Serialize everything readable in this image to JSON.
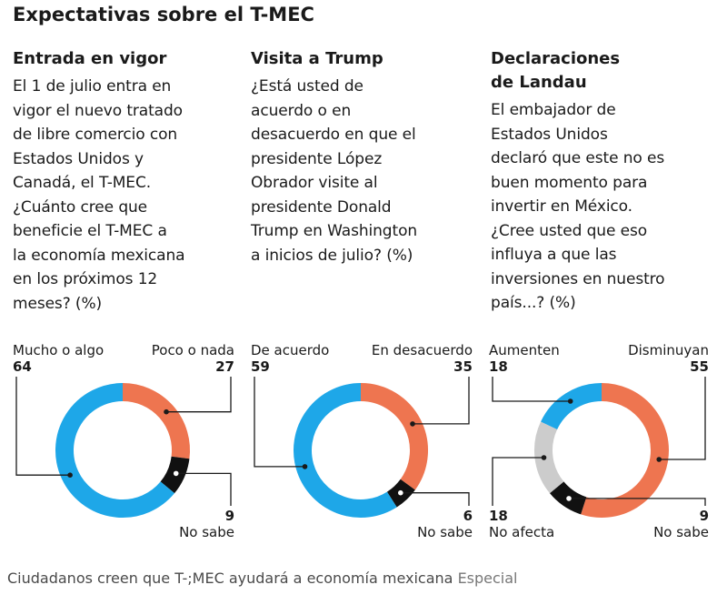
{
  "title": "Expectativas sobre el T-MEC",
  "columns": [
    {
      "heading": "Entrada en vigor",
      "question": "El 1 de julio entra en\nvigor el nuevo tratado\nde libre comercio con\nEstados Unidos y\nCanadá, el T-MEC.\n¿Cuánto cree que\nbeneficie el T-MEC a\nla economía mexicana\nen los próximos 12\nmeses? (%)"
    },
    {
      "heading": "Visita a Trump",
      "question": "¿Está usted de\nacuerdo o en\ndesacuerdo en que el\npresidente López\nObrador visite al\npresidente Donald\nTrump en Washington\na inicios de julio?  (%)"
    },
    {
      "heading": "Declaraciones\nde Landau",
      "question": "El embajador de\nEstados Unidos\ndeclaró que este no es\nbuen momento para\ninvertir en México.\n¿Cree usted que eso\ninfluya a que las\ninversiones en nuestro\npaís...? (%)"
    }
  ],
  "chart_data": [
    {
      "type": "pie",
      "title": "Entrada en vigor",
      "labels": [
        "Mucho o algo",
        "Poco o nada",
        "No sabe"
      ],
      "values": [
        64,
        27,
        9
      ],
      "colors": [
        "#1ea7e8",
        "#ee7550",
        "#111111"
      ]
    },
    {
      "type": "pie",
      "title": "Visita a Trump",
      "labels": [
        "De acuerdo",
        "En desacuerdo",
        "No sabe"
      ],
      "values": [
        59,
        35,
        6
      ],
      "colors": [
        "#1ea7e8",
        "#ee7550",
        "#111111"
      ]
    },
    {
      "type": "pie",
      "title": "Declaraciones de Landau",
      "labels": [
        "Aumenten",
        "Disminuyan",
        "No sabe",
        "No afecta"
      ],
      "values": [
        18,
        55,
        9,
        18
      ],
      "colors": [
        "#1ea7e8",
        "#ee7550",
        "#111111",
        "#cccccc"
      ]
    }
  ],
  "caption": {
    "text": "Ciudadanos creen que T-;MEC ayudará a economía mexicana",
    "source": "Especial"
  }
}
